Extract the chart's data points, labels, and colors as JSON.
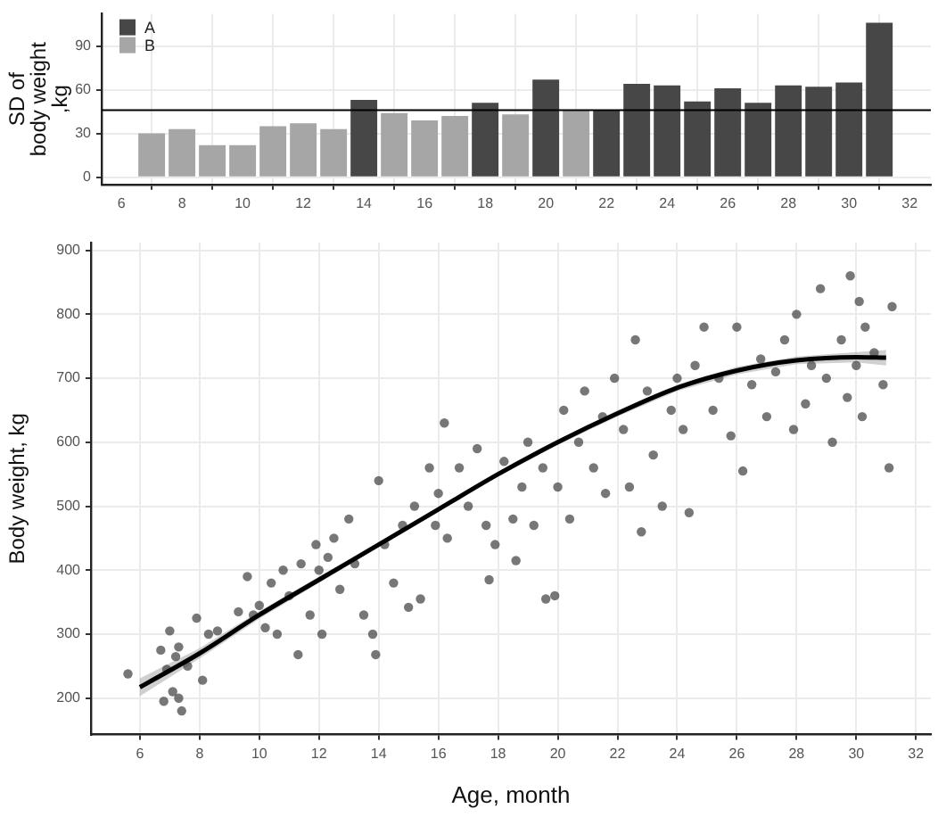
{
  "chart_data": [
    {
      "type": "bar",
      "ylabel": "SD of\nbody weight\n,kg",
      "xlim": [
        5.35,
        32.7
      ],
      "xticks": [
        6,
        8,
        10,
        12,
        14,
        16,
        18,
        20,
        22,
        24,
        26,
        28,
        30,
        32
      ],
      "ylim": [
        -5,
        112
      ],
      "yticks": [
        0,
        30,
        60,
        90
      ],
      "grid": true,
      "legend": "top left",
      "series": [
        {
          "name": "A",
          "color": "#474747",
          "x": [
            14,
            18,
            20,
            22,
            23,
            24,
            25,
            26,
            27,
            28,
            29,
            30,
            31
          ],
          "values": [
            53,
            51,
            67,
            46,
            64,
            63,
            52,
            61,
            51,
            63,
            62,
            65,
            106
          ]
        },
        {
          "name": "B",
          "color": "#a6a6a6",
          "x": [
            7,
            8,
            9,
            10,
            11,
            12,
            13,
            15,
            16,
            17,
            19,
            21
          ],
          "values": [
            30,
            33,
            22,
            22,
            35,
            37,
            33,
            44,
            39,
            42,
            43,
            46
          ]
        }
      ],
      "ref_lines": [
        {
          "axis": "y",
          "value": 46,
          "color": "#000000"
        }
      ]
    },
    {
      "type": "scatter",
      "xlabel": "Age, month",
      "ylabel": "Body weight, kg",
      "xlim": [
        4.36,
        32.5
      ],
      "xticks": [
        6,
        8,
        10,
        12,
        14,
        16,
        18,
        20,
        22,
        24,
        26,
        28,
        30,
        32
      ],
      "ylim": [
        143,
        912
      ],
      "yticks": [
        200,
        300,
        400,
        500,
        600,
        700,
        800,
        900
      ],
      "grid": true,
      "marker": "circle",
      "series": [
        {
          "color": "#3a3a3a",
          "x": [
            5.6,
            6.7,
            6.8,
            6.9,
            7.0,
            7.1,
            7.2,
            7.3,
            7.4,
            7.3,
            7.6,
            7.9,
            8.1,
            8.3,
            8.6,
            9.3,
            9.6,
            9.8,
            10.0,
            10.2,
            10.4,
            10.6,
            10.8,
            11.0,
            11.3,
            11.4,
            11.7,
            11.9,
            12.0,
            12.1,
            12.3,
            12.5,
            12.7,
            13.0,
            13.2,
            13.5,
            13.8,
            13.9,
            14.0,
            14.2,
            14.5,
            14.8,
            15.0,
            15.2,
            15.4,
            15.7,
            15.9,
            16.0,
            16.2,
            16.3,
            16.7,
            17.0,
            17.3,
            17.6,
            17.7,
            17.9,
            18.2,
            18.5,
            18.6,
            18.8,
            19.0,
            19.2,
            19.5,
            19.6,
            19.9,
            20.0,
            20.2,
            20.4,
            20.7,
            20.9,
            21.2,
            21.5,
            21.6,
            21.9,
            22.2,
            22.4,
            22.6,
            22.8,
            23.0,
            23.2,
            23.5,
            23.8,
            24.0,
            24.2,
            24.4,
            24.6,
            24.9,
            25.2,
            25.4,
            25.8,
            26.0,
            26.2,
            26.5,
            26.8,
            27.0,
            27.3,
            27.6,
            27.9,
            28.0,
            28.3,
            28.5,
            28.8,
            29.0,
            29.2,
            29.5,
            29.7,
            29.8,
            30.0,
            30.1,
            30.2,
            30.3,
            30.6,
            30.9,
            31.1,
            31.2
          ],
          "values": [
            238,
            275,
            195,
            245,
            305,
            210,
            265,
            200,
            180,
            280,
            250,
            325,
            228,
            300,
            305,
            335,
            390,
            330,
            345,
            310,
            380,
            300,
            400,
            360,
            268,
            410,
            330,
            440,
            400,
            300,
            420,
            450,
            370,
            480,
            410,
            330,
            300,
            268,
            540,
            440,
            380,
            470,
            342,
            500,
            355,
            560,
            470,
            520,
            630,
            450,
            560,
            500,
            590,
            470,
            385,
            440,
            570,
            480,
            415,
            530,
            600,
            470,
            560,
            355,
            360,
            530,
            650,
            480,
            600,
            680,
            560,
            640,
            520,
            700,
            620,
            530,
            760,
            460,
            680,
            580,
            500,
            650,
            700,
            620,
            490,
            720,
            780,
            650,
            700,
            610,
            780,
            555,
            690,
            730,
            640,
            710,
            760,
            620,
            800,
            660,
            720,
            840,
            700,
            600,
            760,
            670,
            860,
            720,
            820,
            640,
            780,
            740,
            690,
            560,
            812
          ]
        },
        {
          "type": "line",
          "marker": "none",
          "color": "#000000",
          "x": [
            6,
            8,
            10,
            12,
            14,
            16,
            18,
            20,
            22,
            24,
            26,
            28,
            30,
            31
          ],
          "values": [
            217,
            270,
            330,
            385,
            440,
            495,
            550,
            600,
            645,
            685,
            712,
            728,
            733,
            732
          ],
          "lower": [
            203,
            262,
            324,
            380,
            436,
            491,
            546,
            596,
            640,
            680,
            706,
            722,
            725,
            720
          ],
          "upper": [
            231,
            278,
            336,
            390,
            444,
            499,
            554,
            604,
            650,
            690,
            718,
            734,
            741,
            744
          ]
        }
      ]
    }
  ]
}
